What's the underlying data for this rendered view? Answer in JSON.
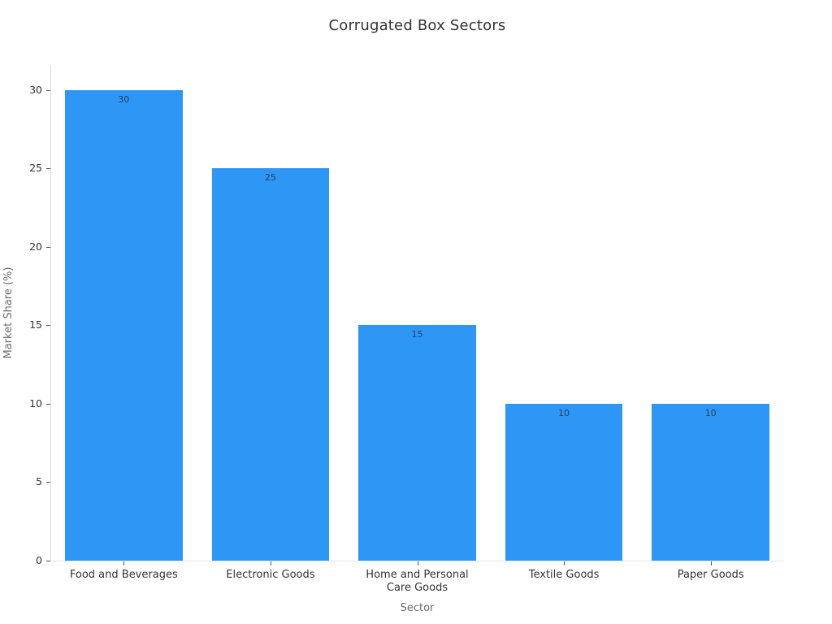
{
  "chart_data": {
    "type": "bar",
    "title": "Corrugated Box Sectors",
    "xlabel": "Sector",
    "ylabel": "Market Share (%)",
    "categories": [
      "Food and Beverages",
      "Electronic Goods",
      "Home and Personal Care Goods",
      "Textile Goods",
      "Paper Goods"
    ],
    "categories_display_lines": [
      [
        "Food and Beverages"
      ],
      [
        "Electronic Goods"
      ],
      [
        "Home and Personal",
        "Care Goods"
      ],
      [
        "Textile Goods"
      ],
      [
        "Paper Goods"
      ]
    ],
    "values": [
      30,
      25,
      15,
      10,
      10
    ],
    "bar_value_labels": [
      "30",
      "25",
      "15",
      "10",
      "10"
    ],
    "yticks": [
      0,
      5,
      10,
      15,
      20,
      25,
      30
    ],
    "ylim": [
      0,
      31.6
    ],
    "grid": false,
    "legend": false,
    "colors": {
      "bar_fill": "#2e96f5",
      "bar_value_label": "#2a3f5f",
      "tick_label": "#333333",
      "axis_title": "#6b6b6b",
      "title": "#333333",
      "y_axis_line": "#d9d9d9",
      "x_axis_line": "#e3e3e3",
      "tick_mark": "#555555",
      "background": "#ffffff"
    }
  }
}
